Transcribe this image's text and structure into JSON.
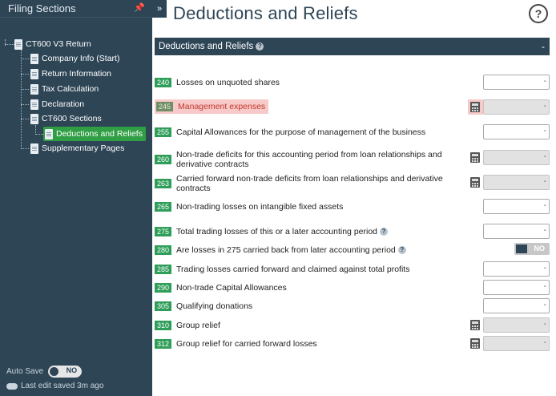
{
  "sidebar": {
    "title": "Filing Sections",
    "pin_icon": "pin-icon",
    "collapse_glyph": "»",
    "tree": {
      "root": "CT600 V3 Return",
      "items": [
        "Company Info (Start)",
        "Return Information",
        "Tax Calculation",
        "Declaration"
      ],
      "group": "CT600 Sections",
      "group_selected": "Deductions and Reliefs",
      "after": "Supplementary Pages"
    },
    "autosave_label": "Auto Save",
    "autosave_state": "NO",
    "last_edit": "Last edit saved 3m ago"
  },
  "main": {
    "title": "Deductions and Reliefs",
    "help_glyph": "?",
    "section": {
      "title": "Deductions and Reliefs",
      "help_glyph": "?",
      "collapse_glyph": "-"
    },
    "rows": [
      {
        "code": "240",
        "label": "Losses on unquoted shares",
        "dash": "-"
      },
      {
        "code": "245",
        "label": "Management expenses",
        "dash": "-"
      },
      {
        "code": "255",
        "label": "Capital Allowances for the purpose of management of the business",
        "dash": "-"
      },
      {
        "code": "260",
        "label": "Non-trade deficits for this accounting period from loan relationships and derivative contracts",
        "dash": "-"
      },
      {
        "code": "263",
        "label": "Carried forward non-trade deficits from loan relationships and derivative contracts",
        "dash": "-"
      },
      {
        "code": "265",
        "label": "Non-trading losses on intangible fixed assets",
        "dash": "-"
      },
      {
        "code": "275",
        "label": "Total trading losses of this or a later accounting period",
        "dash": "-"
      },
      {
        "code": "280",
        "label": "Are losses in 275 carried back from later accounting period",
        "toggle": "NO"
      },
      {
        "code": "285",
        "label": "Trading losses carried forward and claimed against total profits",
        "dash": "-"
      },
      {
        "code": "290",
        "label": "Non-trade Capital Allowances",
        "dash": "-"
      },
      {
        "code": "305",
        "label": "Qualifying donations",
        "dash": "-"
      },
      {
        "code": "310",
        "label": "Group relief",
        "dash": "-"
      },
      {
        "code": "312",
        "label": "Group relief for carried forward losses",
        "dash": "-"
      }
    ]
  },
  "colors": {
    "sidebar_bg": "#2e4556",
    "code_green": "#2f9e5a",
    "selected_green": "#2f9e44",
    "highlight_pink": "#f8c9c9",
    "highlight_text": "#c0392b"
  }
}
